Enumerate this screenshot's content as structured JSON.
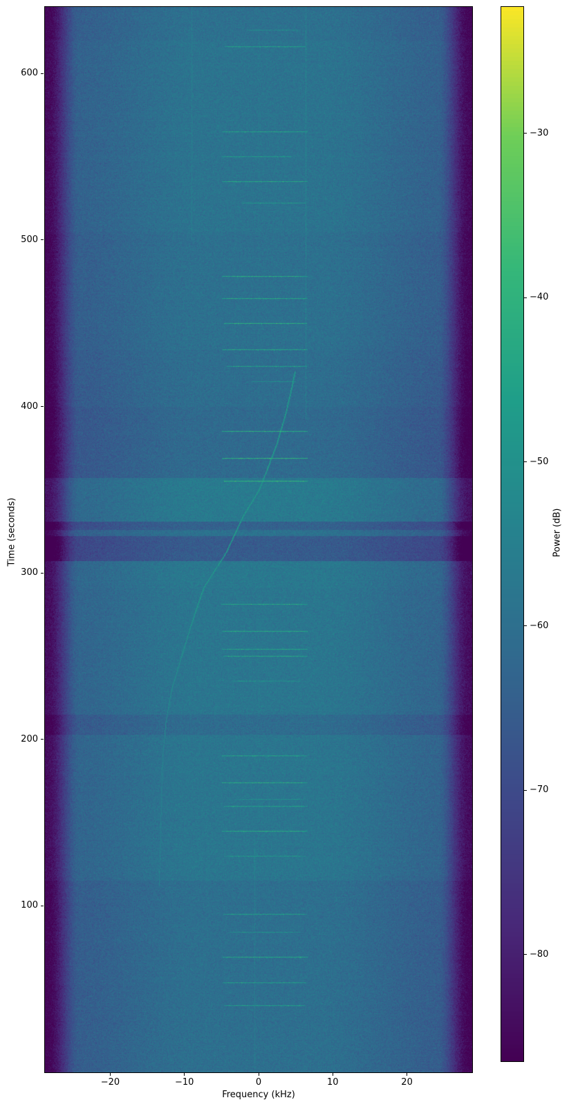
{
  "figure": {
    "background": "#ffffff",
    "text_color": "#000000"
  },
  "chart_data": {
    "type": "heatmap",
    "title": "",
    "xlabel": "Frequency (kHz)",
    "ylabel": "Time (seconds)",
    "xlim": [
      -28.8,
      28.8
    ],
    "ylim": [
      0,
      640
    ],
    "x_ticks": [
      -20,
      -10,
      0,
      10,
      20
    ],
    "x_tick_labels": [
      "−20",
      "−10",
      "0",
      "10",
      "20"
    ],
    "y_ticks": [
      100,
      200,
      300,
      400,
      500,
      600
    ],
    "y_tick_labels": [
      "100",
      "200",
      "300",
      "400",
      "500",
      "600"
    ],
    "grid": false,
    "legend": "none",
    "colorbar": {
      "label": "Power (dB)",
      "vmin": -86.5,
      "vmax": -22.3,
      "ticks": [
        -30,
        -40,
        -50,
        -60,
        -70,
        -80
      ],
      "tick_labels": [
        "−30",
        "−40",
        "−50",
        "−60",
        "−70",
        "−80"
      ]
    },
    "colormap": {
      "name": "viridis",
      "stops": [
        [
          0.0,
          "#440154"
        ],
        [
          0.125,
          "#482878"
        ],
        [
          0.25,
          "#3e4989"
        ],
        [
          0.375,
          "#31688e"
        ],
        [
          0.5,
          "#26828e"
        ],
        [
          0.625,
          "#1f9e89"
        ],
        [
          0.75,
          "#35b779"
        ],
        [
          0.875,
          "#6ece58"
        ],
        [
          1.0,
          "#fde725"
        ]
      ]
    },
    "background_model": {
      "noise_floor_db": -58.5,
      "noise_sigma_db": 2.0,
      "midband_tilt_db": -5,
      "tilt_start_khz": 8,
      "tilt_end_khz": 26,
      "edge_rolloff_db": -21,
      "rolloff_start_khz": 24.1,
      "rolloff_end_khz": 28.4,
      "time_bands": [
        {
          "t0": 0,
          "t1": 115,
          "delta_db": -1.5
        },
        {
          "t0": 115,
          "t1": 203,
          "delta_db": 0.5
        },
        {
          "t0": 203,
          "t1": 215,
          "delta_db": -2.5
        },
        {
          "t0": 215,
          "t1": 291,
          "delta_db": 0.5
        },
        {
          "t0": 291,
          "t1": 307,
          "delta_db": 1.2
        },
        {
          "t0": 307,
          "t1": 322,
          "delta_db": -7.0
        },
        {
          "t0": 322,
          "t1": 326,
          "delta_db": -1.0
        },
        {
          "t0": 326,
          "t1": 331,
          "delta_db": -5.5
        },
        {
          "t0": 331,
          "t1": 357,
          "delta_db": 1.8
        },
        {
          "t0": 357,
          "t1": 400,
          "delta_db": -3.0
        },
        {
          "t0": 400,
          "t1": 434,
          "delta_db": -2.0
        },
        {
          "t0": 434,
          "t1": 505,
          "delta_db": -1.2
        },
        {
          "t0": 505,
          "t1": 620,
          "delta_db": -0.3
        },
        {
          "t0": 620,
          "t1": 640,
          "delta_db": -1.2
        }
      ]
    },
    "doppler_track": {
      "description": "satellite Doppler S-curve",
      "peak_power_db": -46,
      "fade_power_db": -55,
      "points_t_f": [
        [
          112,
          -13.4
        ],
        [
          140,
          -13.2
        ],
        [
          165,
          -13.1
        ],
        [
          190,
          -12.9
        ],
        [
          210,
          -12.5
        ],
        [
          230,
          -11.7
        ],
        [
          248,
          -10.5
        ],
        [
          270,
          -9.0
        ],
        [
          291,
          -7.4
        ],
        [
          312,
          -4.4
        ],
        [
          333,
          -2.2
        ],
        [
          350,
          0.1
        ],
        [
          365,
          1.4
        ],
        [
          378,
          2.5
        ],
        [
          395,
          3.6
        ],
        [
          410,
          4.4
        ],
        [
          421,
          4.9
        ]
      ]
    },
    "bursts": [
      {
        "t": 626,
        "f0": -1.5,
        "f1": 5.5,
        "p": -52
      },
      {
        "t": 616,
        "f0": -4.5,
        "f1": 6.4,
        "p": -46
      },
      {
        "t": 565,
        "f0": -4.9,
        "f1": 6.6,
        "p": -45
      },
      {
        "t": 550,
        "f0": -4.9,
        "f1": 4.3,
        "p": -47
      },
      {
        "t": 535,
        "f0": -4.9,
        "f1": 6.6,
        "p": -44
      },
      {
        "t": 522,
        "f0": -2.2,
        "f1": 6.4,
        "p": -48
      },
      {
        "t": 478,
        "f0": -4.9,
        "f1": 6.6,
        "p": -43
      },
      {
        "t": 465,
        "f0": -4.9,
        "f1": 6.6,
        "p": -44
      },
      {
        "t": 450,
        "f0": -4.6,
        "f1": 6.5,
        "p": -42
      },
      {
        "t": 434,
        "f0": -4.9,
        "f1": 6.6,
        "p": -44
      },
      {
        "t": 424,
        "f0": -4.2,
        "f1": 6.5,
        "p": -46
      },
      {
        "t": 415,
        "f0": -1.0,
        "f1": 5.0,
        "p": -52
      },
      {
        "t": 385,
        "f0": -4.9,
        "f1": 6.6,
        "p": -42
      },
      {
        "t": 369,
        "f0": -4.9,
        "f1": 6.6,
        "p": -40
      },
      {
        "t": 355,
        "f0": -4.6,
        "f1": 6.6,
        "p": -40
      },
      {
        "t": 281,
        "f0": -5.0,
        "f1": 6.6,
        "p": -44
      },
      {
        "t": 265,
        "f0": -4.9,
        "f1": 6.6,
        "p": -43
      },
      {
        "t": 254,
        "f0": -4.9,
        "f1": 6.6,
        "p": -45
      },
      {
        "t": 250,
        "f0": -4.7,
        "f1": 6.6,
        "p": -44
      },
      {
        "t": 235,
        "f0": -3.6,
        "f1": 5.6,
        "p": -50
      },
      {
        "t": 190,
        "f0": -4.9,
        "f1": 6.6,
        "p": -45
      },
      {
        "t": 174,
        "f0": -4.9,
        "f1": 6.6,
        "p": -43
      },
      {
        "t": 164,
        "f0": -3.1,
        "f1": 6.1,
        "p": -51
      },
      {
        "t": 160,
        "f0": -4.6,
        "f1": 6.6,
        "p": -46
      },
      {
        "t": 145,
        "f0": -4.9,
        "f1": 6.6,
        "p": -43
      },
      {
        "t": 130,
        "f0": -4.6,
        "f1": 6.3,
        "p": -48
      },
      {
        "t": 95,
        "f0": -4.7,
        "f1": 6.5,
        "p": -46
      },
      {
        "t": 84,
        "f0": -4.1,
        "f1": 5.6,
        "p": -50
      },
      {
        "t": 69,
        "f0": -4.9,
        "f1": 6.6,
        "p": -44
      },
      {
        "t": 54,
        "f0": -4.8,
        "f1": 6.4,
        "p": -46
      },
      {
        "t": 40,
        "f0": -4.6,
        "f1": 6.3,
        "p": -47
      }
    ],
    "carriers": [
      {
        "f_khz": 6.35,
        "t0": 392,
        "t1": 640,
        "delta_db": 4.5
      },
      {
        "f_khz": -9.0,
        "t0": 500,
        "t1": 640,
        "delta_db": 3.0
      },
      {
        "f_khz": -0.55,
        "t0": 0,
        "t1": 140,
        "delta_db": 3.5
      },
      {
        "f_khz": 0.0,
        "t0": 140,
        "t1": 640,
        "delta_db": 1.0
      }
    ]
  }
}
